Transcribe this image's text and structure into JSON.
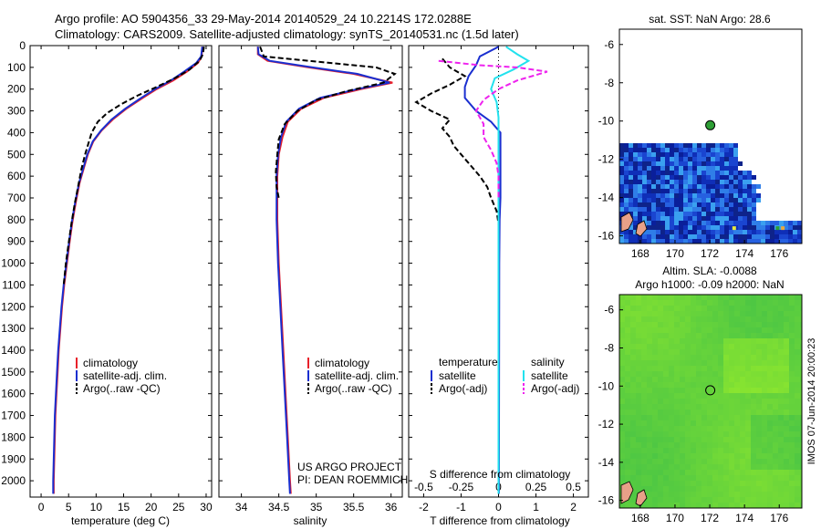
{
  "header": {
    "title_line1": "Argo profile: AO 5904356_33 29-May-2014 20140529_24 10.2214S 172.0288E",
    "title_line2": "Climatology: CARS2009. Satellite-adjusted climatology: synTS_20140531.nc (1.5d later)"
  },
  "colors": {
    "climatology": "#e8202a",
    "satellite": "#1a2fd0",
    "argo": "#000000",
    "sal_satellite": "#22e2ee",
    "sal_argo": "#ee22ee"
  },
  "chart_data": [
    {
      "type": "line",
      "panel": "temperature",
      "xlabel": "temperature (deg C)",
      "ylabel": "",
      "xlim": [
        -2,
        31
      ],
      "ylim": [
        2075,
        0
      ],
      "xticks": [
        0,
        5,
        10,
        15,
        20,
        25,
        30
      ],
      "yticks": [
        0,
        100,
        200,
        300,
        400,
        500,
        600,
        700,
        800,
        900,
        1000,
        1100,
        1200,
        1300,
        1400,
        1500,
        1600,
        1700,
        1800,
        1900,
        2000
      ],
      "legend": [
        "climatology",
        "satellite-adj. clim.",
        "Argo(..raw -QC)"
      ],
      "legend_position": "lower-center",
      "series": [
        {
          "name": "climatology",
          "style": "solid",
          "color": "#e8202a",
          "points": [
            [
              29.3,
              5
            ],
            [
              29.2,
              50
            ],
            [
              28.5,
              80
            ],
            [
              26.5,
              120
            ],
            [
              24,
              160
            ],
            [
              21,
              200
            ],
            [
              18.5,
              240
            ],
            [
              15.5,
              290
            ],
            [
              13,
              340
            ],
            [
              11,
              390
            ],
            [
              9.5,
              440
            ],
            [
              8.5,
              500
            ],
            [
              7.8,
              560
            ],
            [
              7,
              630
            ],
            [
              6.3,
              720
            ],
            [
              5.7,
              810
            ],
            [
              5.2,
              900
            ],
            [
              4.7,
              1000
            ],
            [
              4.2,
              1100
            ],
            [
              3.8,
              1200
            ],
            [
              3.5,
              1300
            ],
            [
              3.2,
              1400
            ],
            [
              3,
              1500
            ],
            [
              2.8,
              1600
            ],
            [
              2.6,
              1700
            ],
            [
              2.5,
              1800
            ],
            [
              2.4,
              1900
            ],
            [
              2.3,
              2000
            ],
            [
              2.3,
              2060
            ]
          ]
        },
        {
          "name": "satellite-adj. clim.",
          "style": "solid",
          "color": "#1a2fd0",
          "points": [
            [
              29.3,
              5
            ],
            [
              29.1,
              50
            ],
            [
              28.2,
              80
            ],
            [
              26,
              120
            ],
            [
              23.6,
              160
            ],
            [
              20.7,
              200
            ],
            [
              18.2,
              240
            ],
            [
              15.3,
              290
            ],
            [
              12.8,
              340
            ],
            [
              10.9,
              390
            ],
            [
              9.4,
              440
            ],
            [
              8.4,
              500
            ],
            [
              7.7,
              560
            ],
            [
              6.9,
              630
            ],
            [
              6.2,
              720
            ],
            [
              5.6,
              810
            ],
            [
              5.1,
              900
            ],
            [
              4.6,
              1000
            ],
            [
              4.1,
              1100
            ],
            [
              3.7,
              1200
            ],
            [
              3.4,
              1300
            ],
            [
              3.1,
              1400
            ],
            [
              2.9,
              1500
            ],
            [
              2.7,
              1600
            ],
            [
              2.5,
              1700
            ],
            [
              2.4,
              1800
            ],
            [
              2.3,
              1900
            ],
            [
              2.2,
              2000
            ],
            [
              2.2,
              2060
            ]
          ]
        },
        {
          "name": "Argo(..raw -QC)",
          "style": "dashed",
          "color": "#000000",
          "points": [
            [
              29.6,
              5
            ],
            [
              29.4,
              40
            ],
            [
              28.8,
              70
            ],
            [
              27,
              110
            ],
            [
              24.3,
              150
            ],
            [
              21,
              190
            ],
            [
              17.5,
              230
            ],
            [
              14.5,
              270
            ],
            [
              12,
              310
            ],
            [
              10.3,
              350
            ],
            [
              9.2,
              400
            ],
            [
              8.6,
              450
            ],
            [
              8,
              500
            ],
            [
              7.3,
              570
            ],
            [
              6.7,
              650
            ],
            [
              6.1,
              730
            ],
            [
              5.5,
              820
            ],
            [
              5,
              910
            ],
            [
              4.5,
              1000
            ],
            [
              4.1,
              1100
            ]
          ]
        }
      ]
    },
    {
      "type": "line",
      "panel": "salinity",
      "xlabel": "salinity",
      "ylabel": "",
      "xlim": [
        33.7,
        36.15
      ],
      "ylim": [
        2075,
        0
      ],
      "xticks": [
        34,
        34.5,
        35,
        35.5,
        36
      ],
      "legend": [
        "climatology",
        "satellite-adj. clim.",
        "Argo(..raw -QC)"
      ],
      "legend_position": "lower-center",
      "annotations": [
        "US ARGO PROJECT",
        "PI: DEAN ROEMMICH"
      ],
      "series": [
        {
          "name": "climatology",
          "style": "solid",
          "color": "#e8202a",
          "points": [
            [
              34.22,
              5
            ],
            [
              34.22,
              40
            ],
            [
              34.35,
              70
            ],
            [
              34.9,
              100
            ],
            [
              35.5,
              130
            ],
            [
              36.02,
              170
            ],
            [
              35.6,
              200
            ],
            [
              35.1,
              240
            ],
            [
              34.8,
              290
            ],
            [
              34.62,
              350
            ],
            [
              34.55,
              420
            ],
            [
              34.5,
              500
            ],
            [
              34.48,
              600
            ],
            [
              34.48,
              800
            ],
            [
              34.5,
              1000
            ],
            [
              34.53,
              1200
            ],
            [
              34.56,
              1400
            ],
            [
              34.59,
              1600
            ],
            [
              34.62,
              1800
            ],
            [
              34.65,
              2000
            ],
            [
              34.66,
              2060
            ]
          ]
        },
        {
          "name": "satellite-adj. clim.",
          "style": "solid",
          "color": "#1a2fd0",
          "points": [
            [
              34.22,
              5
            ],
            [
              34.23,
              40
            ],
            [
              34.38,
              70
            ],
            [
              34.95,
              100
            ],
            [
              35.55,
              130
            ],
            [
              35.98,
              170
            ],
            [
              35.55,
              200
            ],
            [
              35.05,
              240
            ],
            [
              34.77,
              290
            ],
            [
              34.6,
              350
            ],
            [
              34.53,
              420
            ],
            [
              34.49,
              500
            ],
            [
              34.47,
              600
            ],
            [
              34.47,
              800
            ],
            [
              34.49,
              1000
            ],
            [
              34.52,
              1200
            ],
            [
              34.55,
              1400
            ],
            [
              34.58,
              1600
            ],
            [
              34.61,
              1800
            ],
            [
              34.64,
              2000
            ],
            [
              34.65,
              2060
            ]
          ]
        },
        {
          "name": "Argo(..raw -QC)",
          "style": "dashed",
          "color": "#000000",
          "points": [
            [
              34.25,
              5
            ],
            [
              34.3,
              50
            ],
            [
              34.9,
              70
            ],
            [
              35.8,
              100
            ],
            [
              36.05,
              130
            ],
            [
              35.9,
              170
            ],
            [
              35.4,
              210
            ],
            [
              35,
              250
            ],
            [
              34.75,
              300
            ],
            [
              34.58,
              360
            ],
            [
              34.5,
              430
            ],
            [
              34.48,
              500
            ],
            [
              34.46,
              580
            ],
            [
              34.47,
              650
            ],
            [
              34.5,
              700
            ]
          ]
        }
      ]
    },
    {
      "type": "line",
      "panel": "difference",
      "xlabel": "T difference from climatology",
      "xlabel_top": "S difference from climatology",
      "xlim": [
        -2.4,
        2.4
      ],
      "ylim": [
        2075,
        0
      ],
      "xticks_T": [
        -2,
        -1,
        0,
        1,
        2
      ],
      "xticks_S": [
        "-0.5",
        "-0.25",
        "0",
        "0.25",
        "0.5"
      ],
      "legend": [
        "temperature",
        "satellite",
        "Argo(-adj)",
        "salinity",
        "satellite",
        "Argo(-adj)"
      ],
      "legend_position": "lower-center",
      "series": [
        {
          "name": "satellite",
          "group": "temperature",
          "style": "solid",
          "color": "#1a2fd0",
          "points": [
            [
              0,
              5
            ],
            [
              -0.5,
              50
            ],
            [
              -0.6,
              90
            ],
            [
              -0.8,
              140
            ],
            [
              -0.9,
              190
            ],
            [
              -0.9,
              240
            ],
            [
              -0.6,
              300
            ],
            [
              -0.2,
              350
            ],
            [
              0.05,
              400
            ],
            [
              0.05,
              500
            ],
            [
              0.05,
              600
            ],
            [
              0.05,
              700
            ],
            [
              0.03,
              800
            ],
            [
              0.02,
              1000
            ],
            [
              0.01,
              2060
            ]
          ]
        },
        {
          "name": "Argo(-adj)",
          "group": "temperature",
          "style": "dashed",
          "color": "#000000",
          "points": [
            [
              -1.5,
              60
            ],
            [
              -1.3,
              100
            ],
            [
              -0.9,
              140
            ],
            [
              -1.3,
              180
            ],
            [
              -1.8,
              220
            ],
            [
              -2.2,
              260
            ],
            [
              -1.8,
              300
            ],
            [
              -1.3,
              340
            ],
            [
              -1.5,
              380
            ],
            [
              -1.3,
              420
            ],
            [
              -1.2,
              460
            ],
            [
              -1,
              500
            ],
            [
              -0.8,
              540
            ],
            [
              -0.5,
              600
            ],
            [
              -0.3,
              650
            ],
            [
              -0.2,
              700
            ],
            [
              -0.05,
              760
            ],
            [
              0,
              820
            ]
          ]
        },
        {
          "name": "satellite",
          "group": "salinity",
          "style": "solid",
          "color": "#22e2ee",
          "points": [
            [
              0.2,
              5
            ],
            [
              0.5,
              40
            ],
            [
              0.8,
              70
            ],
            [
              0.4,
              110
            ],
            [
              -0.1,
              150
            ],
            [
              -0.2,
              200
            ],
            [
              -0.05,
              260
            ],
            [
              0,
              330
            ],
            [
              0,
              500
            ],
            [
              0,
              1000
            ],
            [
              0,
              2060
            ]
          ]
        },
        {
          "name": "Argo(-adj)",
          "group": "salinity",
          "style": "dashed",
          "color": "#ee22ee",
          "points": [
            [
              -1.6,
              70
            ],
            [
              -0.5,
              90
            ],
            [
              0.5,
              100
            ],
            [
              1.3,
              120
            ],
            [
              0.5,
              160
            ],
            [
              0,
              200
            ],
            [
              -0.4,
              250
            ],
            [
              -0.6,
              300
            ],
            [
              -0.4,
              360
            ],
            [
              -0.4,
              420
            ],
            [
              -0.2,
              480
            ],
            [
              -0.05,
              540
            ],
            [
              0,
              600
            ],
            [
              0,
              700
            ]
          ]
        }
      ]
    },
    {
      "type": "heatmap",
      "panel": "sst_map",
      "title": "sat. SST: NaN Argo: 28.6",
      "xlim": [
        166.8,
        177.3
      ],
      "ylim": [
        -16.4,
        -5.2
      ],
      "xticks": [
        168,
        170,
        172,
        174,
        176
      ],
      "yticks": [
        -6,
        -8,
        -10,
        -12,
        -14,
        -16
      ],
      "argo_position": [
        172.03,
        -10.22
      ],
      "argo_marker_fill": "#2e9e35"
    },
    {
      "type": "heatmap",
      "panel": "sla_map",
      "title_line1": "Altim. SLA: -0.0088",
      "title_line2": "Argo h1000: -0.09 h2000: NaN",
      "xlim": [
        166.8,
        177.3
      ],
      "ylim": [
        -16.4,
        -5.2
      ],
      "xticks": [
        168,
        170,
        172,
        174,
        176
      ],
      "yticks": [
        -6,
        -8,
        -10,
        -12,
        -14,
        -16
      ],
      "argo_position": [
        172.03,
        -10.22
      ]
    }
  ],
  "footer": {
    "stamp": "IMOS 07-Jun-2014 20:00:23"
  }
}
